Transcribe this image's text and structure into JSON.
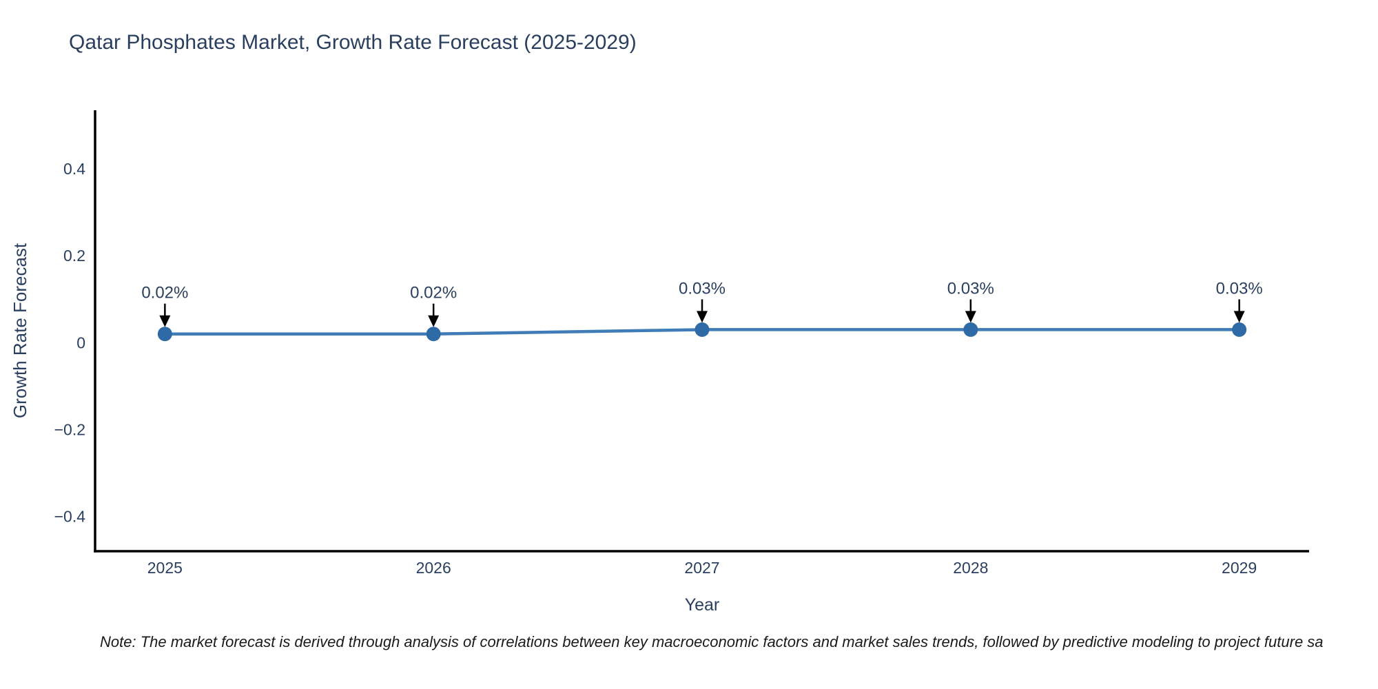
{
  "chart_data": {
    "type": "line",
    "title": "Qatar Phosphates Market, Growth Rate Forecast (2025-2029)",
    "xlabel": "Year",
    "ylabel": "Growth Rate Forecast",
    "x": [
      2025,
      2026,
      2027,
      2028,
      2029
    ],
    "categories": [
      "2025",
      "2026",
      "2027",
      "2028",
      "2029"
    ],
    "series": [
      {
        "name": "Growth Rate Forecast",
        "values": [
          0.02,
          0.02,
          0.03,
          0.03,
          0.03
        ],
        "point_labels": [
          "0.02%",
          "0.02%",
          "0.03%",
          "0.03%",
          "0.03%"
        ]
      }
    ],
    "yticks": [
      {
        "value": 0.4,
        "label": "0.4"
      },
      {
        "value": 0.2,
        "label": "0.2"
      },
      {
        "value": 0,
        "label": "0"
      },
      {
        "value": -0.2,
        "label": "−0.2"
      },
      {
        "value": -0.4,
        "label": "−0.4"
      }
    ],
    "xlim": [
      2024.74,
      2029.26
    ],
    "ylim": [
      -0.48,
      0.535
    ],
    "grid": false,
    "legend_position": "none",
    "annotation_arrows": true,
    "colors": {
      "line": "#3f7cb8",
      "marker": "#2e6ba6",
      "axis": "#000000",
      "text": "#2a3f5f",
      "arrow": "#000000"
    }
  },
  "note": "Note: The market forecast is derived through analysis of correlations between key macroeconomic factors and market sales trends, followed by predictive modeling to project future sa"
}
